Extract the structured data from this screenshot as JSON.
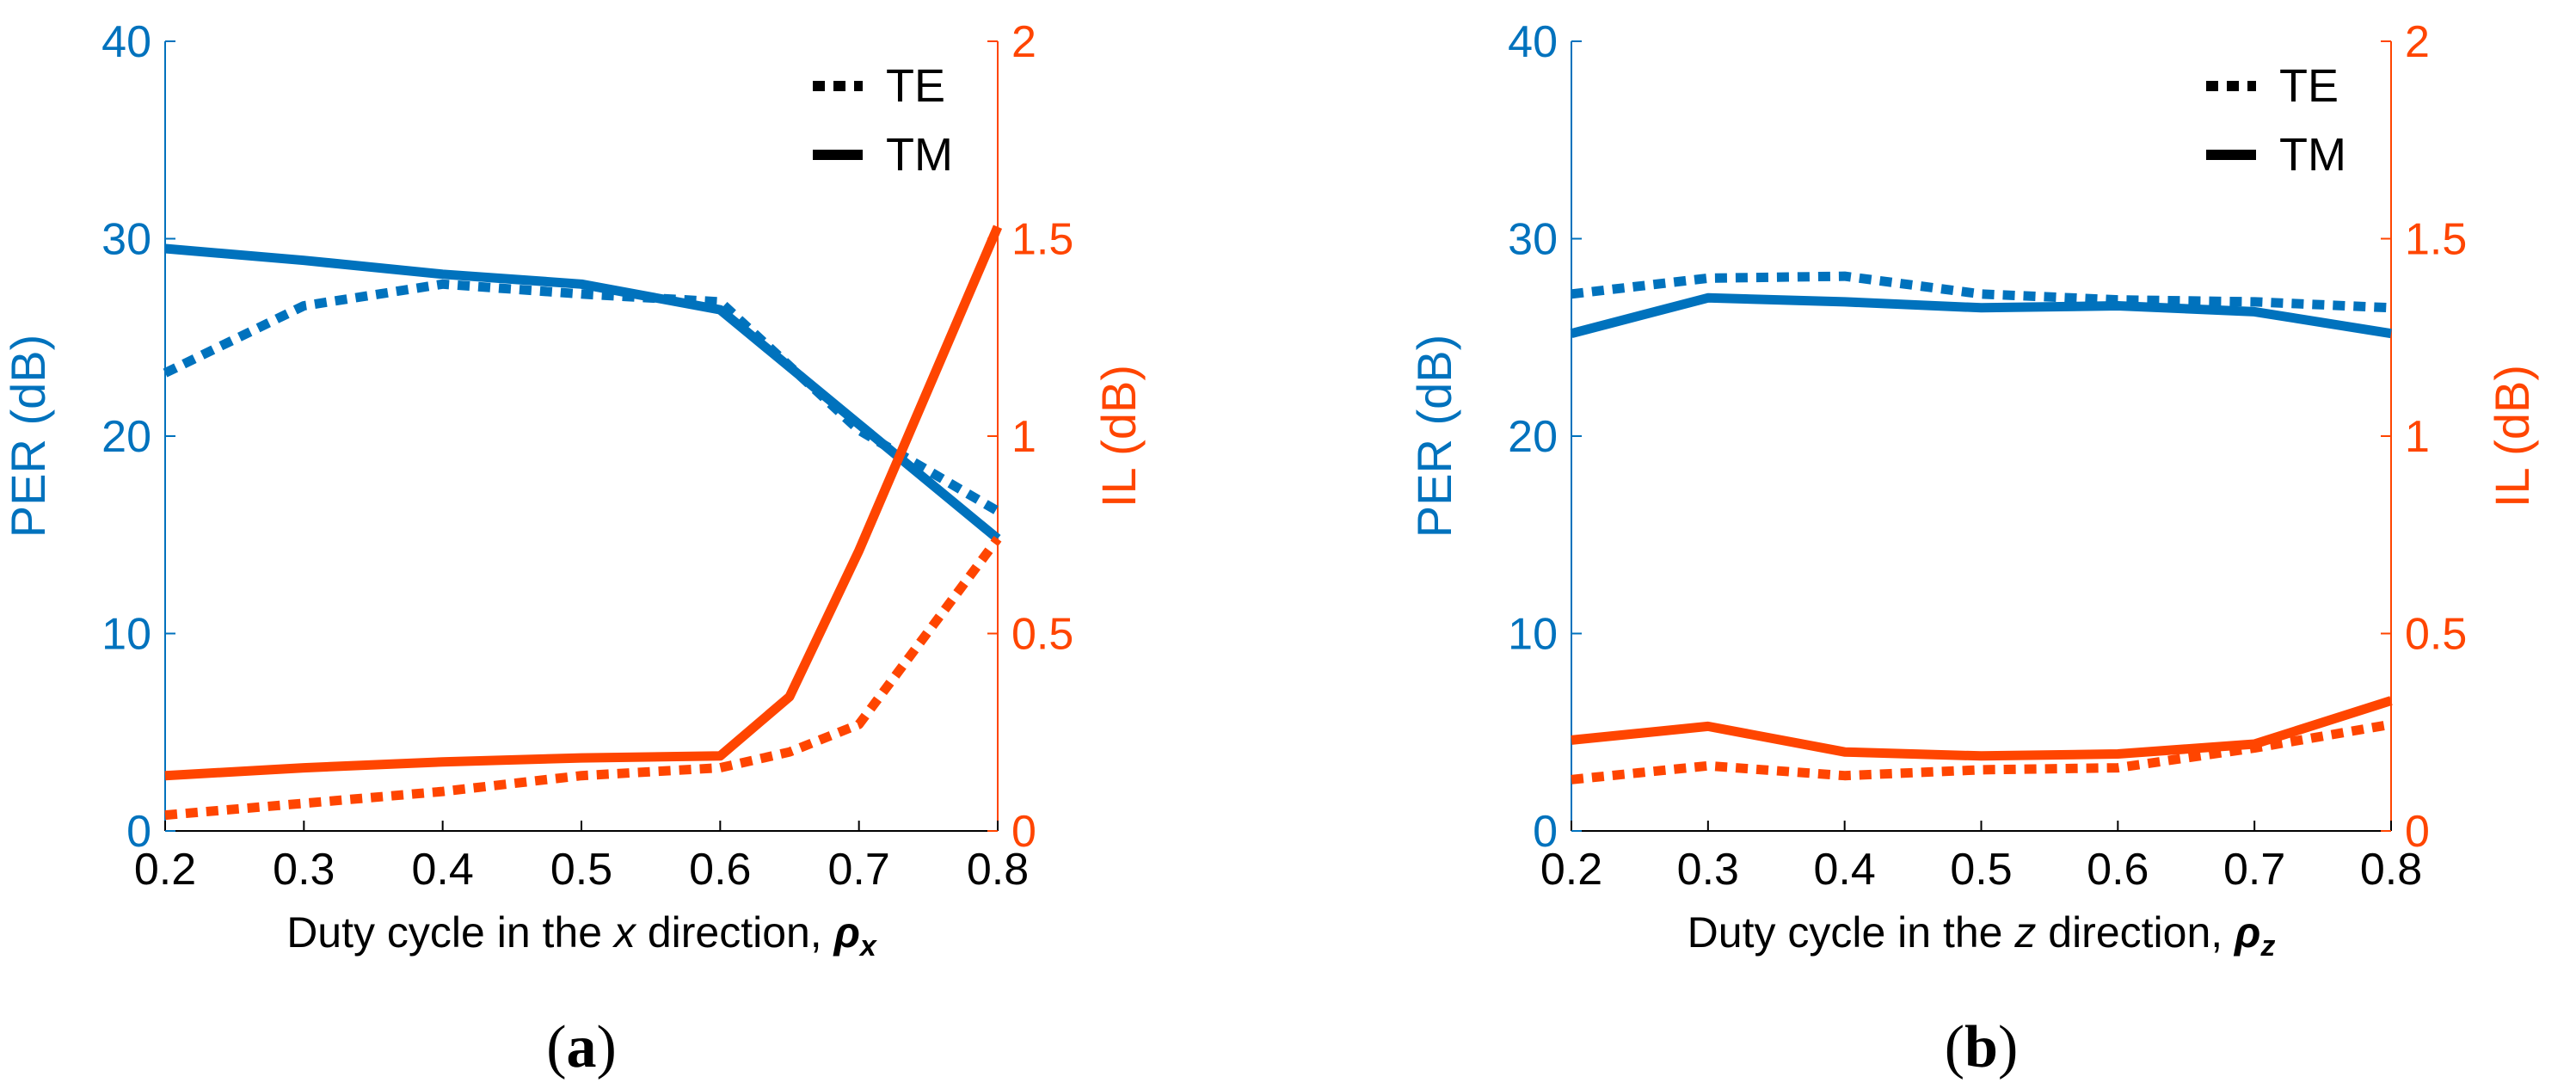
{
  "colors": {
    "per": "#0072BD",
    "il": "#FF4500",
    "text": "#000000"
  },
  "chart_data": [
    {
      "type": "line",
      "panel": "a",
      "caption_open": "(",
      "caption_letter": "a",
      "caption_close": ")",
      "xlabel_pre": "Duty cycle in the ",
      "xlabel_var": "x",
      "xlabel_post": " direction, ",
      "xlabel_sym": "ρ",
      "xlabel_sub": "x",
      "ylabel_left": "PER (dB)",
      "ylabel_right": "IL (dB)",
      "xlim": [
        0.2,
        0.8
      ],
      "ylim_left": [
        0,
        40
      ],
      "ylim_right": [
        0,
        2
      ],
      "xticks": [
        "0.2",
        "0.3",
        "0.4",
        "0.5",
        "0.6",
        "0.7",
        "0.8"
      ],
      "yticks_left": [
        "0",
        "10",
        "20",
        "30",
        "40"
      ],
      "yticks_right": [
        "0",
        "0.5",
        "1",
        "1.5",
        "2"
      ],
      "legend": [
        {
          "label": "TE",
          "style": "dotted"
        },
        {
          "label": "TM",
          "style": "solid"
        }
      ],
      "series": [
        {
          "name": "PER TE",
          "axis": "left",
          "style": "dotted",
          "x": [
            0.2,
            0.3,
            0.4,
            0.5,
            0.6,
            0.7,
            0.8
          ],
          "y": [
            23.2,
            26.6,
            27.7,
            27.2,
            26.8,
            20.3,
            16.2
          ]
        },
        {
          "name": "PER TM",
          "axis": "left",
          "style": "solid",
          "x": [
            0.2,
            0.3,
            0.4,
            0.5,
            0.6,
            0.7,
            0.8
          ],
          "y": [
            29.5,
            28.9,
            28.2,
            27.7,
            26.4,
            20.6,
            14.8
          ]
        },
        {
          "name": "IL TE",
          "axis": "right",
          "style": "dotted",
          "x": [
            0.2,
            0.3,
            0.4,
            0.5,
            0.6,
            0.65,
            0.7,
            0.8
          ],
          "y": [
            0.04,
            0.07,
            0.1,
            0.14,
            0.16,
            0.2,
            0.27,
            0.74
          ]
        },
        {
          "name": "IL TM",
          "axis": "right",
          "style": "solid",
          "x": [
            0.2,
            0.3,
            0.4,
            0.5,
            0.6,
            0.65,
            0.7,
            0.8
          ],
          "y": [
            0.14,
            0.16,
            0.175,
            0.185,
            0.19,
            0.34,
            0.71,
            1.53
          ]
        }
      ]
    },
    {
      "type": "line",
      "panel": "b",
      "caption_open": "(",
      "caption_letter": "b",
      "caption_close": ")",
      "xlabel_pre": "Duty cycle in the ",
      "xlabel_var": "z",
      "xlabel_post": " direction, ",
      "xlabel_sym": "ρ",
      "xlabel_sub": "z",
      "ylabel_left": "PER (dB)",
      "ylabel_right": "IL (dB)",
      "xlim": [
        0.2,
        0.8
      ],
      "ylim_left": [
        0,
        40
      ],
      "ylim_right": [
        0,
        2
      ],
      "xticks": [
        "0.2",
        "0.3",
        "0.4",
        "0.5",
        "0.6",
        "0.7",
        "0.8"
      ],
      "yticks_left": [
        "0",
        "10",
        "20",
        "30",
        "40"
      ],
      "yticks_right": [
        "0",
        "0.5",
        "1",
        "1.5",
        "2"
      ],
      "legend": [
        {
          "label": "TE",
          "style": "dotted"
        },
        {
          "label": "TM",
          "style": "solid"
        }
      ],
      "series": [
        {
          "name": "PER TE",
          "axis": "left",
          "style": "dotted",
          "x": [
            0.2,
            0.3,
            0.4,
            0.5,
            0.6,
            0.7,
            0.8
          ],
          "y": [
            27.2,
            28.0,
            28.1,
            27.2,
            26.9,
            26.8,
            26.5
          ]
        },
        {
          "name": "PER TM",
          "axis": "left",
          "style": "solid",
          "x": [
            0.2,
            0.3,
            0.4,
            0.5,
            0.6,
            0.7,
            0.8
          ],
          "y": [
            25.2,
            27.0,
            26.8,
            26.5,
            26.6,
            26.3,
            25.2
          ]
        },
        {
          "name": "IL TE",
          "axis": "right",
          "style": "dotted",
          "x": [
            0.2,
            0.3,
            0.4,
            0.5,
            0.6,
            0.7,
            0.8
          ],
          "y": [
            0.13,
            0.165,
            0.14,
            0.155,
            0.16,
            0.21,
            0.27
          ]
        },
        {
          "name": "IL TM",
          "axis": "right",
          "style": "solid",
          "x": [
            0.2,
            0.3,
            0.4,
            0.5,
            0.6,
            0.7,
            0.8
          ],
          "y": [
            0.23,
            0.265,
            0.2,
            0.19,
            0.195,
            0.22,
            0.33
          ]
        }
      ]
    }
  ]
}
